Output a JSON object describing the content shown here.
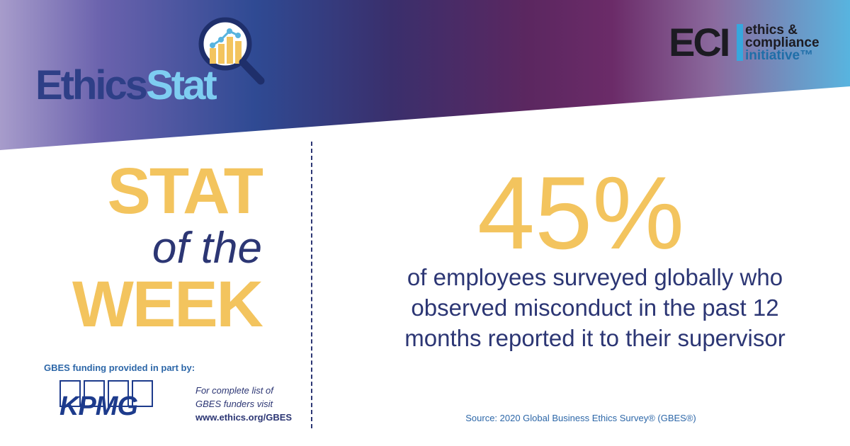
{
  "brand": {
    "logo_part1": "Ethics",
    "logo_part2": "Stat",
    "logo_icon": "magnifier-bar-chart-icon",
    "partner_letters": "ECI",
    "partner_line1": "ethics &",
    "partner_line2": "compliance",
    "partner_line3": "initiative™"
  },
  "heading": {
    "line1": "STAT",
    "line2": "of the",
    "line3": "WEEK"
  },
  "stat": {
    "value": "45%",
    "description": "of employees surveyed globally who observed misconduct in the past 12 months reported it to their supervisor"
  },
  "source": "Source: 2020 Global Business Ethics Survey® (GBES®)",
  "funding": {
    "label": "GBES funding provided in part by:",
    "sponsor": "KPMG",
    "note_line1": "For complete list of",
    "note_line2": "GBES funders visit",
    "url": "www.ethics.org/GBES"
  },
  "colors": {
    "gold": "#f3c45e",
    "navy": "#2c3674",
    "blue": "#2d67a8",
    "light_blue": "#7ecdf1"
  }
}
